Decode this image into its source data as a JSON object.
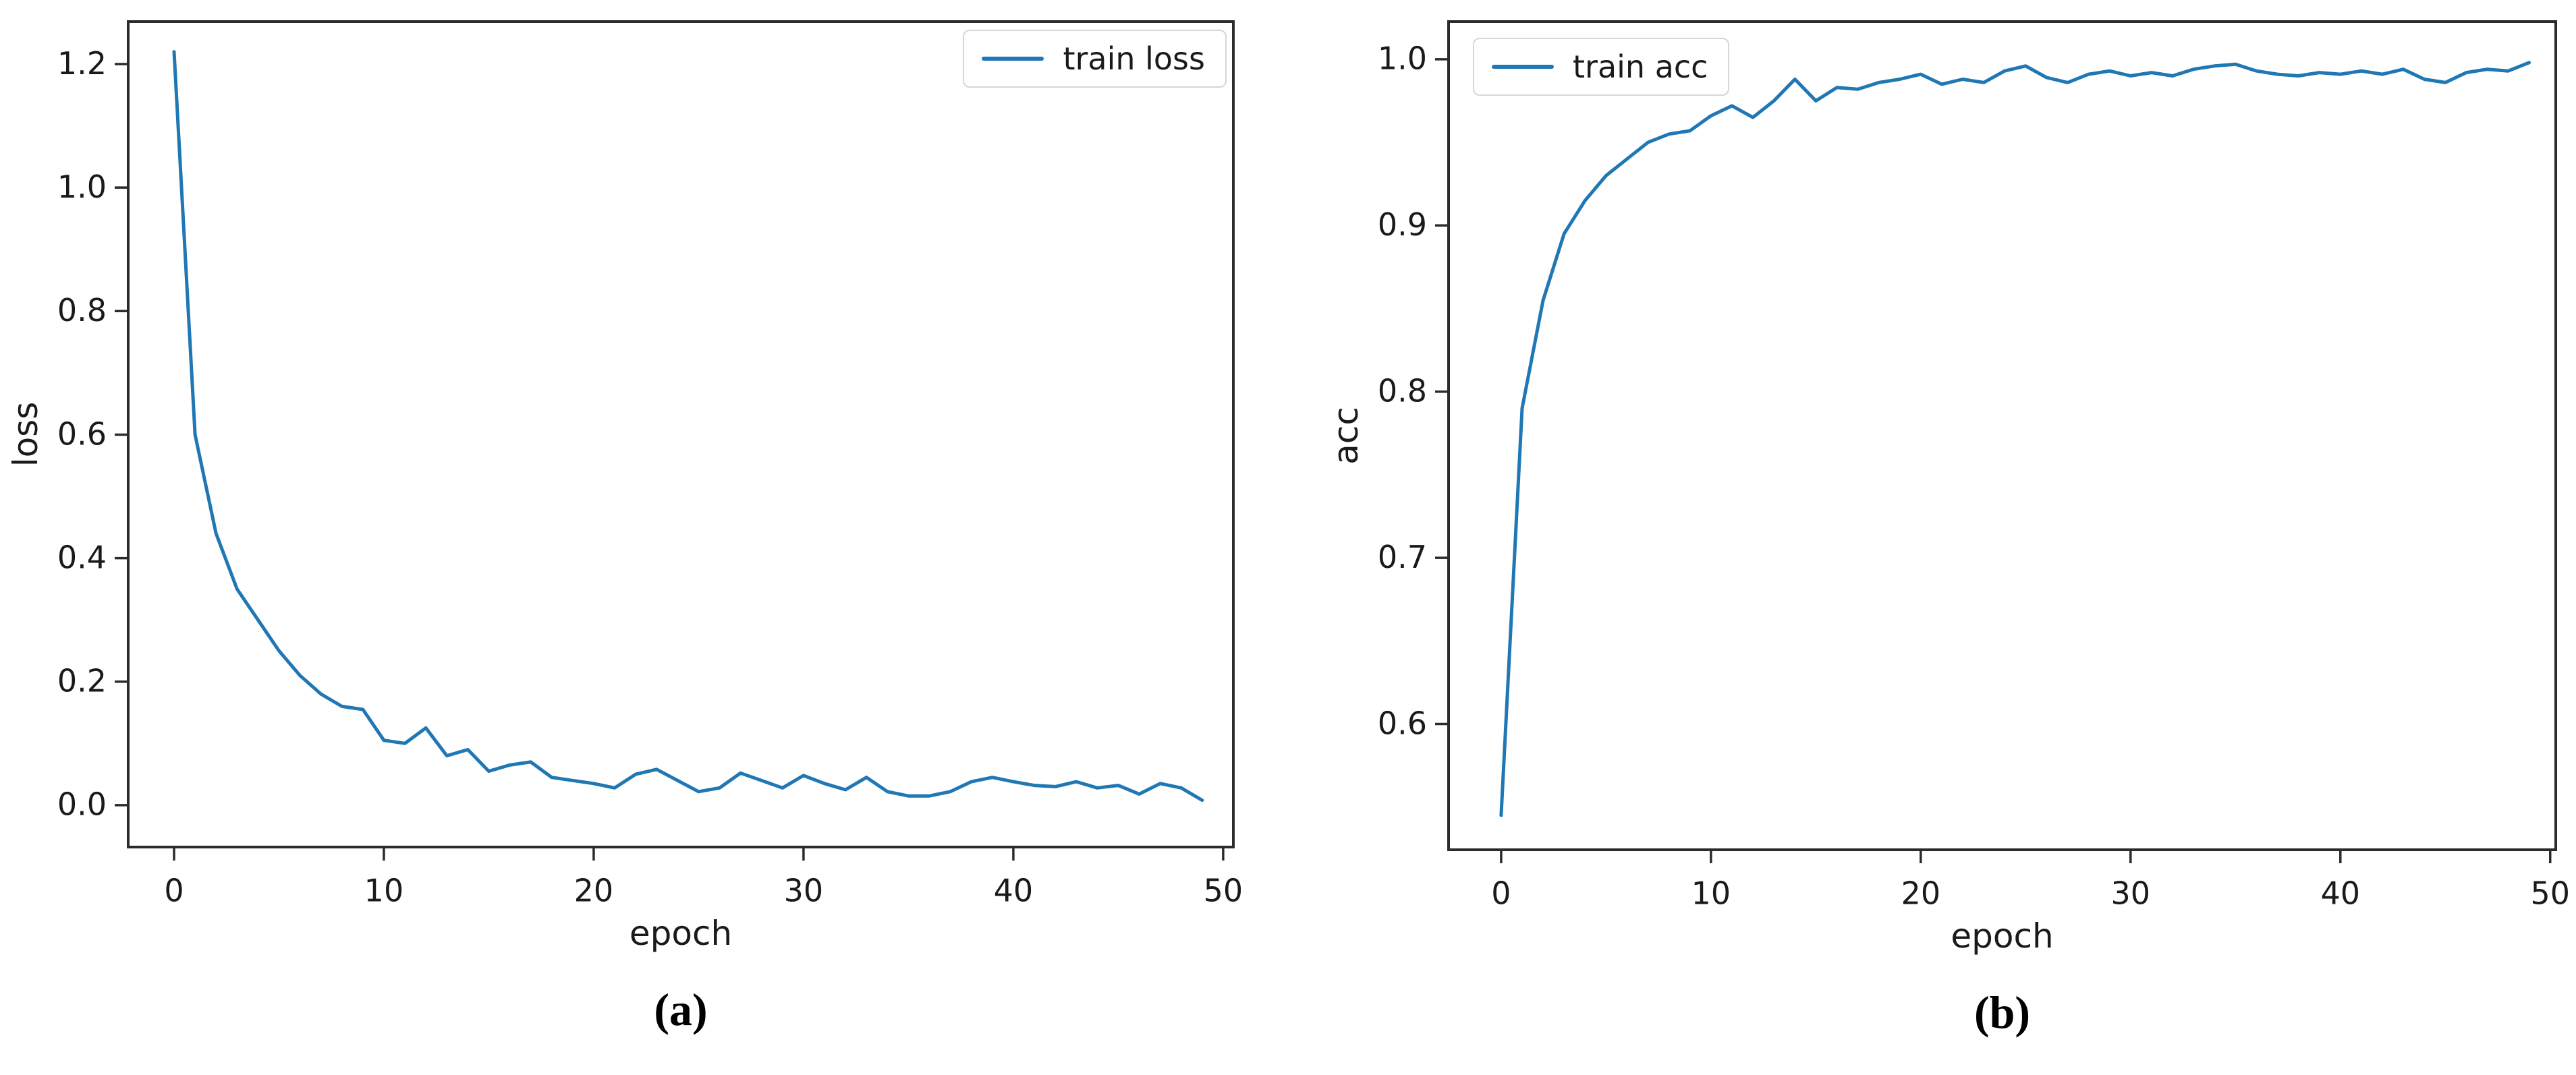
{
  "page": {
    "background": "#ffffff"
  },
  "chart_data": [
    {
      "type": "line",
      "caption": "(a)",
      "xlabel": "epoch",
      "ylabel": "loss",
      "legend_label": "train loss",
      "legend_position": "upper right",
      "line_color": "#1f77b4",
      "axis_color": "#2b2b2b",
      "grid": false,
      "xlim": [
        -2.25,
        50.55
      ],
      "ylim": [
        -0.07,
        1.271
      ],
      "xticks": [
        0,
        10,
        20,
        30,
        40,
        50
      ],
      "xtick_labels": [
        "0",
        "10",
        "20",
        "30",
        "40",
        "50"
      ],
      "yticks": [
        0.0,
        0.2,
        0.4,
        0.6,
        0.8,
        1.0,
        1.2
      ],
      "ytick_labels": [
        "0.0",
        "0.2",
        "0.4",
        "0.6",
        "0.8",
        "1.0",
        "1.2"
      ],
      "x": [
        0,
        1,
        2,
        3,
        4,
        5,
        6,
        7,
        8,
        9,
        10,
        11,
        12,
        13,
        14,
        15,
        16,
        17,
        18,
        19,
        20,
        21,
        22,
        23,
        24,
        25,
        26,
        27,
        28,
        29,
        30,
        31,
        32,
        33,
        34,
        35,
        36,
        37,
        38,
        39,
        40,
        41,
        42,
        43,
        44,
        45,
        46,
        47,
        48,
        49
      ],
      "series": [
        {
          "name": "train loss",
          "values": [
            1.22,
            0.6,
            0.44,
            0.35,
            0.3,
            0.25,
            0.21,
            0.18,
            0.16,
            0.155,
            0.105,
            0.1,
            0.125,
            0.08,
            0.09,
            0.055,
            0.065,
            0.07,
            0.045,
            0.04,
            0.035,
            0.028,
            0.05,
            0.058,
            0.04,
            0.022,
            0.028,
            0.052,
            0.04,
            0.028,
            0.048,
            0.035,
            0.025,
            0.045,
            0.022,
            0.015,
            0.015,
            0.022,
            0.038,
            0.045,
            0.038,
            0.032,
            0.03,
            0.038,
            0.028,
            0.032,
            0.018,
            0.035,
            0.028,
            0.008
          ]
        }
      ]
    },
    {
      "type": "line",
      "caption": "(b)",
      "xlabel": "epoch",
      "ylabel": "acc",
      "legend_label": "train acc",
      "legend_position": "upper left",
      "line_color": "#1f77b4",
      "axis_color": "#2b2b2b",
      "grid": false,
      "xlim": [
        -2.57,
        50.33
      ],
      "ylim": [
        0.5235,
        1.0235
      ],
      "xticks": [
        0,
        10,
        20,
        30,
        40,
        50
      ],
      "xtick_labels": [
        "0",
        "10",
        "20",
        "30",
        "40",
        "50"
      ],
      "yticks": [
        0.6,
        0.7,
        0.8,
        0.9,
        1.0
      ],
      "ytick_labels": [
        "0.6",
        "0.7",
        "0.8",
        "0.9",
        "1.0"
      ],
      "x": [
        0,
        1,
        2,
        3,
        4,
        5,
        6,
        7,
        8,
        9,
        10,
        11,
        12,
        13,
        14,
        15,
        16,
        17,
        18,
        19,
        20,
        21,
        22,
        23,
        24,
        25,
        26,
        27,
        28,
        29,
        30,
        31,
        32,
        33,
        34,
        35,
        36,
        37,
        38,
        39,
        40,
        41,
        42,
        43,
        44,
        45,
        46,
        47,
        48,
        49
      ],
      "series": [
        {
          "name": "train acc",
          "values": [
            0.545,
            0.79,
            0.855,
            0.895,
            0.915,
            0.93,
            0.94,
            0.95,
            0.955,
            0.957,
            0.966,
            0.972,
            0.965,
            0.975,
            0.988,
            0.975,
            0.983,
            0.982,
            0.986,
            0.988,
            0.991,
            0.985,
            0.988,
            0.986,
            0.993,
            0.996,
            0.989,
            0.986,
            0.991,
            0.993,
            0.99,
            0.992,
            0.99,
            0.994,
            0.996,
            0.997,
            0.993,
            0.991,
            0.99,
            0.992,
            0.991,
            0.993,
            0.991,
            0.994,
            0.988,
            0.986,
            0.992,
            0.994,
            0.993,
            0.998
          ]
        }
      ]
    }
  ]
}
